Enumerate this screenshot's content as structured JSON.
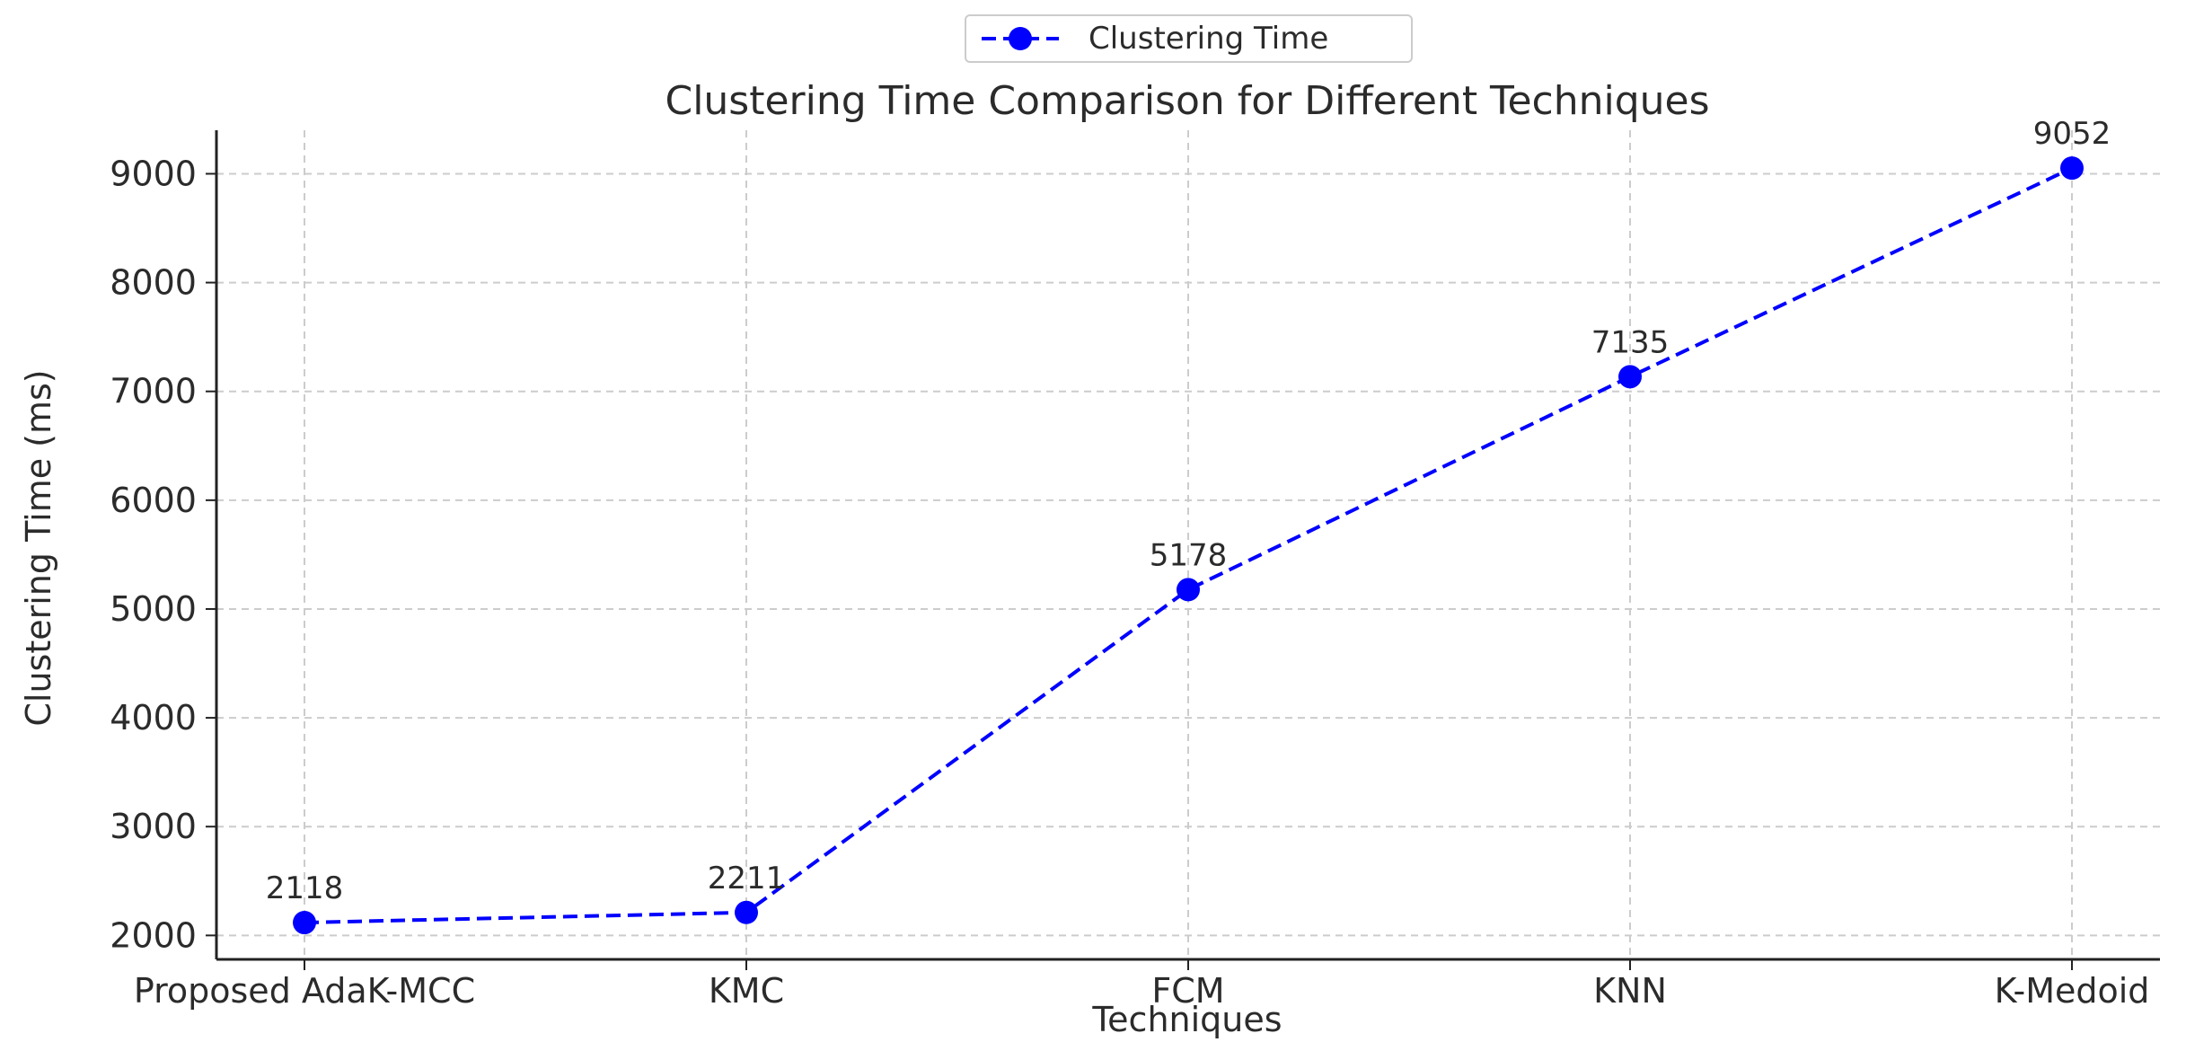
{
  "chart_data": {
    "type": "line",
    "title": "Clustering Time Comparison for Different Techniques",
    "xlabel": "Techniques",
    "ylabel": "Clustering Time (ms)",
    "categories": [
      "Proposed AdaK-MCC",
      "KMC",
      "FCM",
      "KNN",
      "K-Medoid"
    ],
    "series": [
      {
        "name": "Clustering Time",
        "values": [
          2118,
          2211,
          5178,
          7135,
          9052
        ],
        "color": "#0000ff",
        "line_style": "dashed",
        "marker": "circle"
      }
    ],
    "data_labels": [
      "2118",
      "2211",
      "5178",
      "7135",
      "9052"
    ],
    "ylim": [
      1780,
      9400
    ],
    "yticks": [
      2000,
      3000,
      4000,
      5000,
      6000,
      7000,
      8000,
      9000
    ],
    "ytick_labels": [
      "2000",
      "3000",
      "4000",
      "5000",
      "6000",
      "7000",
      "8000",
      "9000"
    ],
    "grid": true,
    "legend_position": "top-center"
  },
  "colors": {
    "series": "#0000ff",
    "grid": "#cccccc",
    "axis": "#222222",
    "text": "#2b2b2b"
  }
}
